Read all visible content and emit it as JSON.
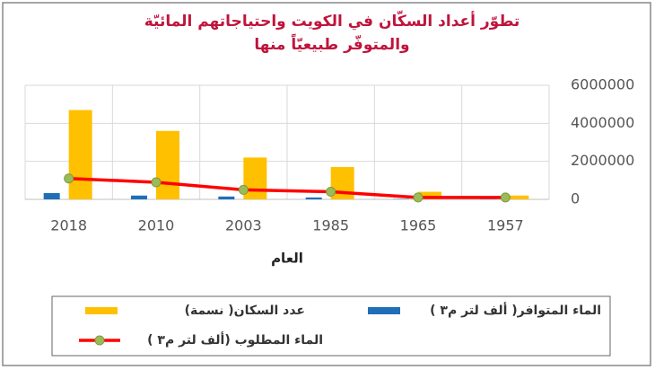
{
  "chart_data": {
    "type": "bar",
    "title": [
      "تطوّر أعداد السكّان في الكويت واحتياجاتهم المائيّة",
      "والمتوفّر طبيعيّاً منها"
    ],
    "x_label": "العام",
    "categories": [
      "2018",
      "2010",
      "2003",
      "1985",
      "1965",
      "1957"
    ],
    "series": [
      {
        "name": "الماء المتوافر( ألف لتر م٣ )",
        "type": "bar",
        "color": "#1f6fb8",
        "values": [
          330000,
          200000,
          150000,
          100000,
          20000,
          10000
        ]
      },
      {
        "name": "عدد السكان( نسمة)",
        "type": "bar",
        "color": "#ffc000",
        "values": [
          4700000,
          3600000,
          2200000,
          1700000,
          400000,
          200000
        ]
      },
      {
        "name": "الماء المطلوب (ألف لتر م٣ )",
        "type": "line",
        "color": "#ff0000",
        "marker_color": "#9bbb59",
        "values": [
          1100000,
          900000,
          500000,
          400000,
          100000,
          100000
        ]
      }
    ],
    "ylim": [
      0,
      6000000
    ],
    "yticks": [
      0,
      2000000,
      4000000,
      6000000
    ],
    "grid": true
  }
}
